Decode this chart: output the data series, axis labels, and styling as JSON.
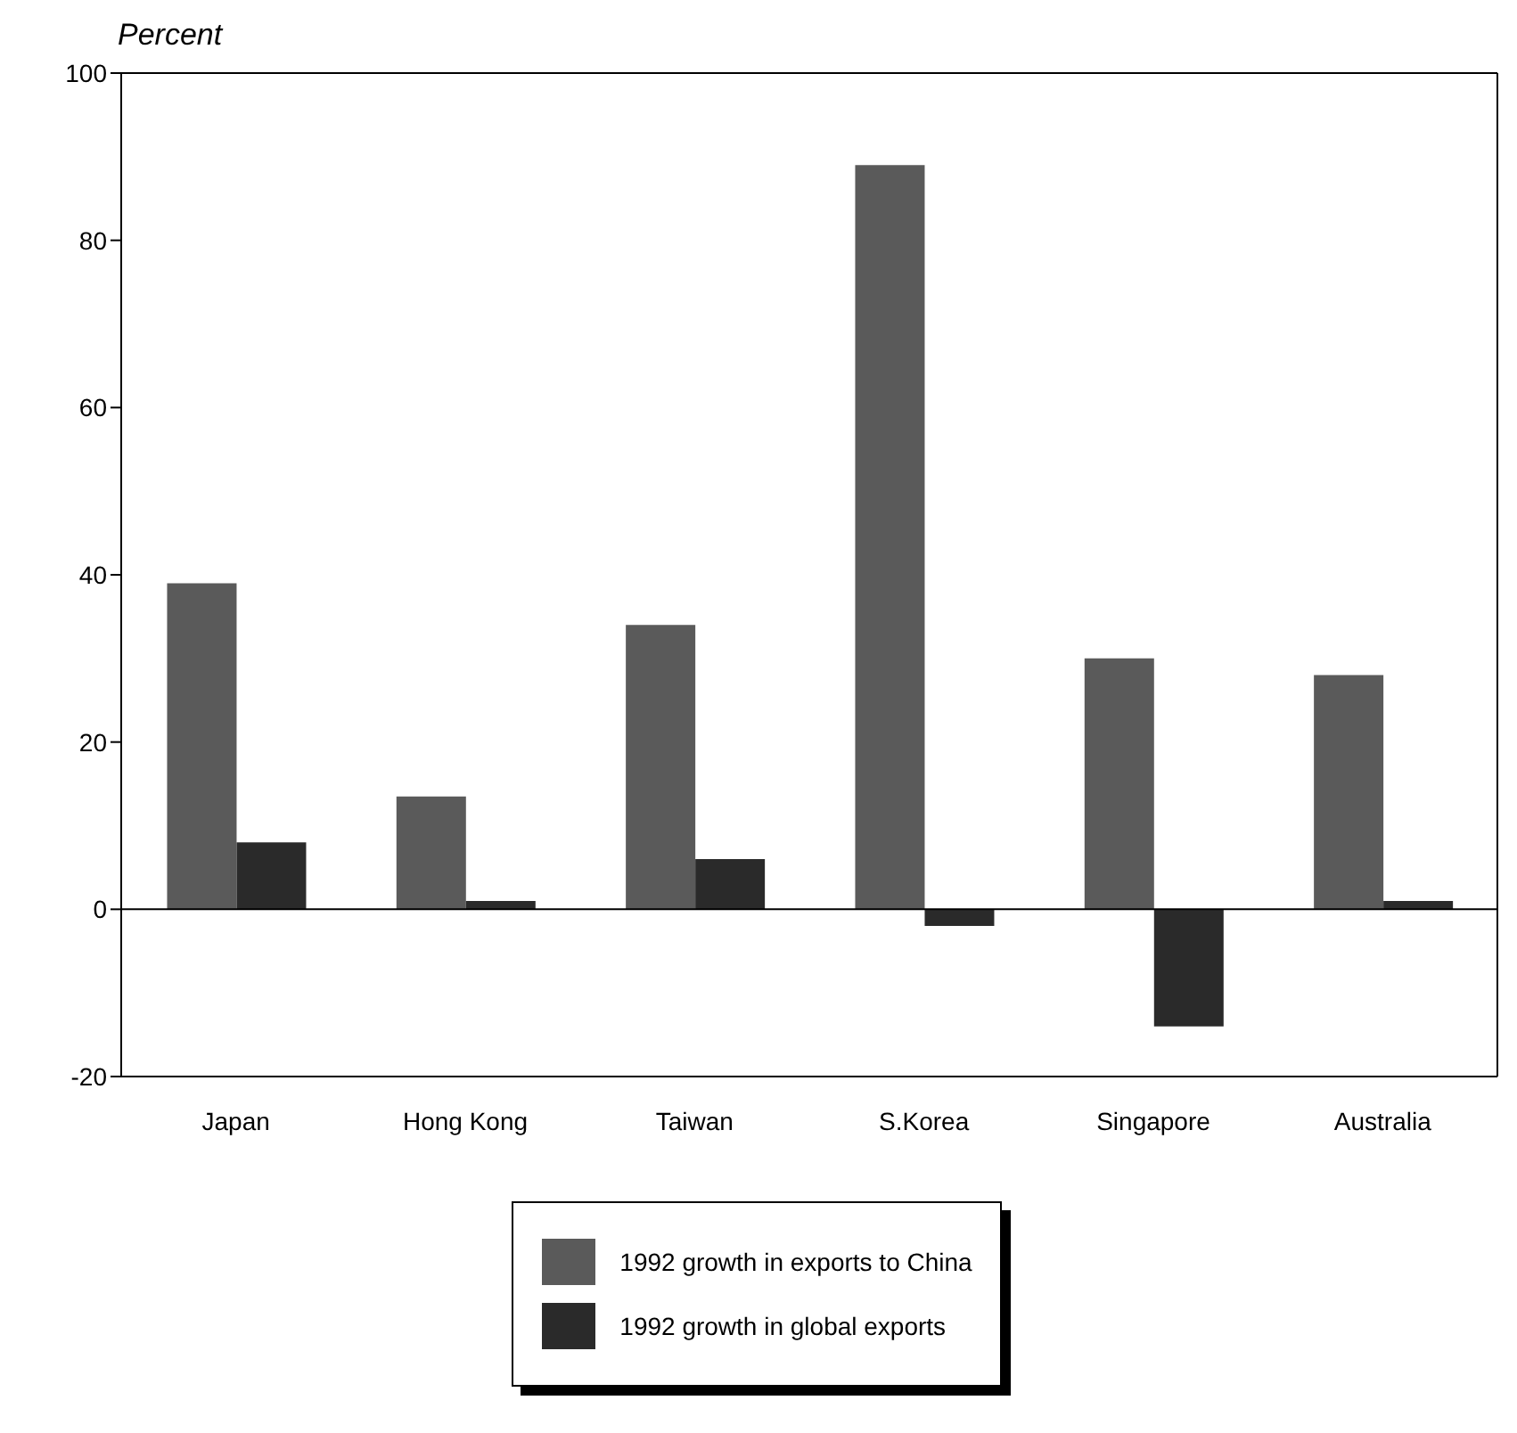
{
  "chart_data": {
    "type": "bar",
    "ylabel": "Percent",
    "categories": [
      "Japan",
      "Hong Kong",
      "Taiwan",
      "S.Korea",
      "Singapore",
      "Australia"
    ],
    "series": [
      {
        "name": "1992 growth in exports to China",
        "color": "#5a5a5a",
        "values": [
          39,
          13.5,
          34,
          89,
          30,
          28
        ]
      },
      {
        "name": "1992 growth in global exports",
        "color": "#2a2a2a",
        "values": [
          8,
          1,
          6,
          -2,
          -14,
          1
        ]
      }
    ],
    "ylim": [
      -20,
      100
    ],
    "yticks": [
      -20,
      0,
      20,
      40,
      60,
      80,
      100
    ],
    "ref_lines": [
      {
        "axis": "y",
        "value": 0,
        "color": "#000000"
      }
    ],
    "grid": false,
    "legend": "bottom"
  }
}
